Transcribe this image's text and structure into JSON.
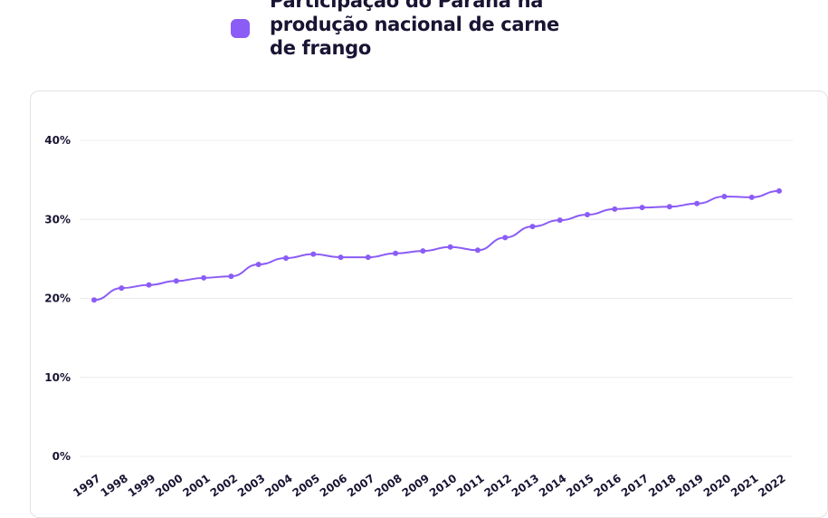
{
  "legend": {
    "label": "Participação do Paraná na produção nacional de carne de frango",
    "color": "#8b5cf6"
  },
  "chart_data": {
    "type": "line",
    "x": [
      "1997",
      "1998",
      "1999",
      "2000",
      "2001",
      "2002",
      "2003",
      "2004",
      "2005",
      "2006",
      "2007",
      "2008",
      "2009",
      "2010",
      "2011",
      "2012",
      "2013",
      "2014",
      "2015",
      "2016",
      "2017",
      "2018",
      "2019",
      "2020",
      "2021",
      "2022"
    ],
    "series": [
      {
        "name": "Participação do Paraná na produção nacional de carne de frango",
        "values": [
          19.8,
          21.3,
          21.7,
          22.2,
          22.6,
          22.8,
          24.3,
          25.1,
          25.6,
          25.2,
          25.2,
          25.7,
          26.0,
          26.5,
          26.1,
          27.7,
          29.1,
          29.9,
          30.6,
          31.3,
          31.5,
          31.6,
          32.0,
          32.9,
          32.8,
          33.6
        ]
      }
    ],
    "ylim": [
      0,
      40
    ],
    "yticks": [
      "0%",
      "10%",
      "20%",
      "30%",
      "40%"
    ],
    "grid": true,
    "legend_position": "top",
    "color": "#8b5cf6"
  }
}
